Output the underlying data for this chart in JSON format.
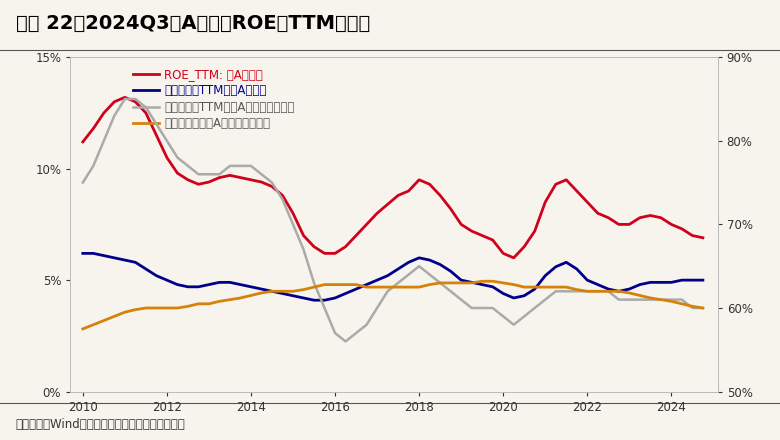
{
  "title": "图表 22、2024Q3全A非金融ROE（TTM）回落",
  "source": "资料来源：Wind，兴业证券经济与金融研究院整理",
  "legend": [
    "ROE_TTM: 全A非金融",
    "销售净利率TTM：全A非金融",
    "资产周转率TTM：全A非金融（右轴）",
    "资产负债率：全A非金融（右轴）"
  ],
  "colors": [
    "#d0021b",
    "#00008B",
    "#aaaaaa",
    "#d4820a"
  ],
  "left_ylim": [
    0,
    15
  ],
  "right_ylim": [
    50,
    90
  ],
  "left_yticks": [
    0,
    5,
    10,
    15
  ],
  "right_yticks": [
    50,
    60,
    70,
    80,
    90
  ],
  "xticks": [
    2010,
    2012,
    2014,
    2016,
    2018,
    2020,
    2022,
    2024
  ],
  "background_color": "#f7f4ee",
  "plot_bg": "#f7f4ee",
  "roe_x": [
    2010.0,
    2010.25,
    2010.5,
    2010.75,
    2011.0,
    2011.25,
    2011.5,
    2011.75,
    2012.0,
    2012.25,
    2012.5,
    2012.75,
    2013.0,
    2013.25,
    2013.5,
    2013.75,
    2014.0,
    2014.25,
    2014.5,
    2014.75,
    2015.0,
    2015.25,
    2015.5,
    2015.75,
    2016.0,
    2016.25,
    2016.5,
    2016.75,
    2017.0,
    2017.25,
    2017.5,
    2017.75,
    2018.0,
    2018.25,
    2018.5,
    2018.75,
    2019.0,
    2019.25,
    2019.5,
    2019.75,
    2020.0,
    2020.25,
    2020.5,
    2020.75,
    2021.0,
    2021.25,
    2021.5,
    2021.75,
    2022.0,
    2022.25,
    2022.5,
    2022.75,
    2023.0,
    2023.25,
    2023.5,
    2023.75,
    2024.0,
    2024.25,
    2024.5,
    2024.75
  ],
  "roe_y": [
    11.2,
    11.8,
    12.5,
    13.0,
    13.2,
    13.0,
    12.5,
    11.5,
    10.5,
    9.8,
    9.5,
    9.3,
    9.4,
    9.6,
    9.7,
    9.6,
    9.5,
    9.4,
    9.2,
    8.8,
    8.0,
    7.0,
    6.5,
    6.2,
    6.2,
    6.5,
    7.0,
    7.5,
    8.0,
    8.4,
    8.8,
    9.0,
    9.5,
    9.3,
    8.8,
    8.2,
    7.5,
    7.2,
    7.0,
    6.8,
    6.2,
    6.0,
    6.5,
    7.2,
    8.5,
    9.3,
    9.5,
    9.0,
    8.5,
    8.0,
    7.8,
    7.5,
    7.5,
    7.8,
    7.9,
    7.8,
    7.5,
    7.3,
    7.0,
    6.9
  ],
  "npm_x": [
    2010.0,
    2010.25,
    2010.5,
    2010.75,
    2011.0,
    2011.25,
    2011.5,
    2011.75,
    2012.0,
    2012.25,
    2012.5,
    2012.75,
    2013.0,
    2013.25,
    2013.5,
    2013.75,
    2014.0,
    2014.25,
    2014.5,
    2014.75,
    2015.0,
    2015.25,
    2015.5,
    2015.75,
    2016.0,
    2016.25,
    2016.5,
    2016.75,
    2017.0,
    2017.25,
    2017.5,
    2017.75,
    2018.0,
    2018.25,
    2018.5,
    2018.75,
    2019.0,
    2019.25,
    2019.5,
    2019.75,
    2020.0,
    2020.25,
    2020.5,
    2020.75,
    2021.0,
    2021.25,
    2021.5,
    2021.75,
    2022.0,
    2022.25,
    2022.5,
    2022.75,
    2023.0,
    2023.25,
    2023.5,
    2023.75,
    2024.0,
    2024.25,
    2024.5,
    2024.75
  ],
  "npm_y": [
    6.2,
    6.2,
    6.1,
    6.0,
    5.9,
    5.8,
    5.5,
    5.2,
    5.0,
    4.8,
    4.7,
    4.7,
    4.8,
    4.9,
    4.9,
    4.8,
    4.7,
    4.6,
    4.5,
    4.4,
    4.3,
    4.2,
    4.1,
    4.1,
    4.2,
    4.4,
    4.6,
    4.8,
    5.0,
    5.2,
    5.5,
    5.8,
    6.0,
    5.9,
    5.7,
    5.4,
    5.0,
    4.9,
    4.8,
    4.7,
    4.4,
    4.2,
    4.3,
    4.6,
    5.2,
    5.6,
    5.8,
    5.5,
    5.0,
    4.8,
    4.6,
    4.5,
    4.6,
    4.8,
    4.9,
    4.9,
    4.9,
    5.0,
    5.0,
    5.0
  ],
  "ato_x": [
    2010.0,
    2010.25,
    2010.5,
    2010.75,
    2011.0,
    2011.25,
    2011.5,
    2011.75,
    2012.0,
    2012.25,
    2012.5,
    2012.75,
    2013.0,
    2013.25,
    2013.5,
    2013.75,
    2014.0,
    2014.25,
    2014.5,
    2014.75,
    2015.0,
    2015.25,
    2015.5,
    2015.75,
    2016.0,
    2016.25,
    2016.5,
    2016.75,
    2017.0,
    2017.25,
    2017.5,
    2017.75,
    2018.0,
    2018.25,
    2018.5,
    2018.75,
    2019.0,
    2019.25,
    2019.5,
    2019.75,
    2020.0,
    2020.25,
    2020.5,
    2020.75,
    2021.0,
    2021.25,
    2021.5,
    2021.75,
    2022.0,
    2022.25,
    2022.5,
    2022.75,
    2023.0,
    2023.25,
    2023.5,
    2023.75,
    2024.0,
    2024.25,
    2024.5,
    2024.75
  ],
  "ato_y": [
    75,
    77,
    80,
    83,
    85,
    85,
    84,
    82,
    80,
    78,
    77,
    76,
    76,
    76,
    77,
    77,
    77,
    76,
    75,
    73,
    70,
    67,
    63,
    60,
    57,
    56,
    57,
    58,
    60,
    62,
    63,
    64,
    65,
    64,
    63,
    62,
    61,
    60,
    60,
    60,
    59,
    58,
    59,
    60,
    61,
    62,
    62,
    62,
    62,
    62,
    62,
    61,
    61,
    61,
    61,
    61,
    61,
    61,
    60,
    60
  ],
  "lev_x": [
    2010.0,
    2010.25,
    2010.5,
    2010.75,
    2011.0,
    2011.25,
    2011.5,
    2011.75,
    2012.0,
    2012.25,
    2012.5,
    2012.75,
    2013.0,
    2013.25,
    2013.5,
    2013.75,
    2014.0,
    2014.25,
    2014.5,
    2014.75,
    2015.0,
    2015.25,
    2015.5,
    2015.75,
    2016.0,
    2016.25,
    2016.5,
    2016.75,
    2017.0,
    2017.25,
    2017.5,
    2017.75,
    2018.0,
    2018.25,
    2018.5,
    2018.75,
    2019.0,
    2019.25,
    2019.5,
    2019.75,
    2020.0,
    2020.25,
    2020.5,
    2020.75,
    2021.0,
    2021.25,
    2021.5,
    2021.75,
    2022.0,
    2022.25,
    2022.5,
    2022.75,
    2023.0,
    2023.25,
    2023.5,
    2023.75,
    2024.0,
    2024.25,
    2024.5,
    2024.75
  ],
  "lev_y": [
    57.5,
    58.0,
    58.5,
    59.0,
    59.5,
    59.8,
    60.0,
    60.0,
    60.0,
    60.0,
    60.2,
    60.5,
    60.5,
    60.8,
    61.0,
    61.2,
    61.5,
    61.8,
    62.0,
    62.0,
    62.0,
    62.2,
    62.5,
    62.8,
    62.8,
    62.8,
    62.8,
    62.5,
    62.5,
    62.5,
    62.5,
    62.5,
    62.5,
    62.8,
    63.0,
    63.0,
    63.0,
    63.0,
    63.2,
    63.2,
    63.0,
    62.8,
    62.5,
    62.5,
    62.5,
    62.5,
    62.5,
    62.2,
    62.0,
    62.0,
    62.0,
    62.0,
    61.8,
    61.5,
    61.2,
    61.0,
    60.8,
    60.5,
    60.2,
    60.0
  ]
}
